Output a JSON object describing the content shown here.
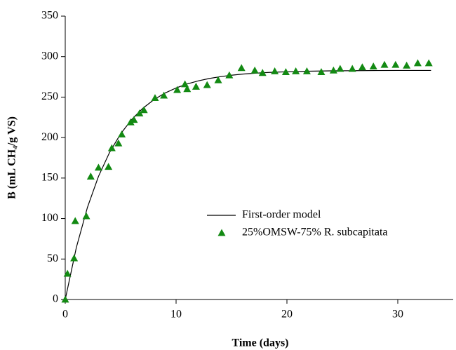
{
  "chart_data": {
    "type": "scatter",
    "x_label": "Time (days)",
    "y_label": "B (mL CH₄/g VS)",
    "xlim": [
      0,
      35
    ],
    "xticks": [
      0,
      10,
      20,
      30
    ],
    "ylim": [
      0,
      350
    ],
    "yticks": [
      0,
      50,
      100,
      150,
      200,
      250,
      300,
      350
    ],
    "series": [
      {
        "name": "First-order model",
        "mark": "line",
        "color": "#000000",
        "x": [
          0,
          1,
          2,
          3,
          4,
          5,
          6,
          7,
          8,
          9,
          10,
          11,
          12,
          13,
          14,
          15,
          16,
          17,
          18,
          19,
          20,
          22,
          24,
          26,
          28,
          30,
          33
        ],
        "values": [
          0,
          64.1,
          113.7,
          152.1,
          181.7,
          204.7,
          222.4,
          236.2,
          246.8,
          255.0,
          261.3,
          266.2,
          270.0,
          273.0,
          275.2,
          277.0,
          278.4,
          279.4,
          280.2,
          280.8,
          281.3,
          282.0,
          282.4,
          282.6,
          282.8,
          282.9,
          282.9
        ]
      },
      {
        "name": "25%OMSW-75% R. subcapitata",
        "mark": "triangle",
        "color": "#138a13",
        "x": [
          0,
          0.2,
          0.8,
          0.9,
          1.9,
          2.3,
          3,
          3.9,
          4.2,
          4.8,
          5.1,
          5.9,
          6.2,
          6.7,
          7.1,
          8.1,
          8.9,
          10.1,
          10.8,
          11,
          11.8,
          12.8,
          13.8,
          14.8,
          15.9,
          17.1,
          17.8,
          18.9,
          19.9,
          20.8,
          21.8,
          23.1,
          24.2,
          24.8,
          25.9,
          26.8,
          27.8,
          28.8,
          29.8,
          30.8,
          31.8,
          32.8
        ],
        "values": [
          0,
          32,
          51,
          97,
          103,
          152,
          163,
          164,
          187,
          193,
          204,
          219,
          222,
          230,
          234,
          249,
          252,
          259,
          266,
          260,
          263,
          265,
          271,
          277,
          286,
          283,
          280,
          282,
          281,
          282,
          282,
          281,
          283,
          285,
          285,
          287,
          288,
          290,
          290,
          289,
          292,
          292
        ]
      }
    ]
  }
}
